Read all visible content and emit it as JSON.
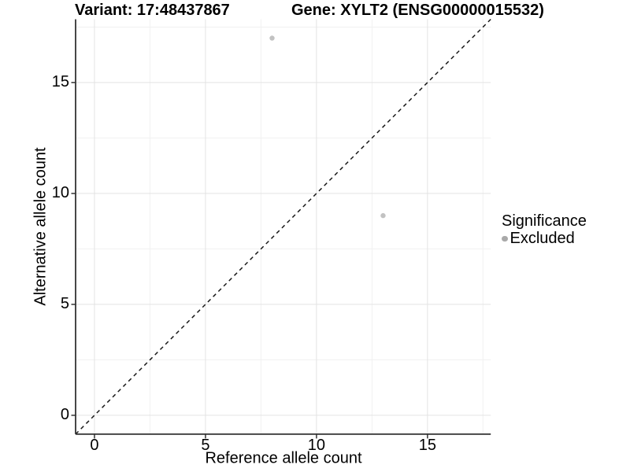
{
  "figure": {
    "titles": {
      "variant": "Variant: 17:48437867",
      "gene": "Gene: XYLT2 (ENSG00000015532)"
    }
  },
  "legend": {
    "title": "Significance",
    "items": [
      {
        "label": "Excluded",
        "color": "#a9a9a9"
      }
    ]
  },
  "chart_data": {
    "type": "scatter",
    "title": "Variant: 17:48437867 | Gene: XYLT2 (ENSG00000015532)",
    "xlabel": "Reference allele count",
    "ylabel": "Alternative allele count",
    "xlim": [
      -0.85,
      17.85
    ],
    "ylim": [
      -0.85,
      17.85
    ],
    "x_ticks": [
      0,
      5,
      10,
      15
    ],
    "y_ticks": [
      0,
      5,
      10,
      15
    ],
    "x_minor_ticks": [
      2.5,
      7.5,
      12.5,
      17.5
    ],
    "y_minor_ticks": [
      2.5,
      7.5,
      12.5,
      17.5
    ],
    "grid": "major+minor",
    "legend_position": "right",
    "series": [
      {
        "name": "Excluded",
        "color": "#c2c2c2",
        "points": [
          {
            "x": 8,
            "y": 17
          },
          {
            "x": 13,
            "y": 9
          }
        ]
      }
    ],
    "reference_line": {
      "type": "identity y=x",
      "style": "dashed",
      "color": "#1a1a1a"
    }
  },
  "colors": {
    "background": "#ffffff",
    "grid_major": "#e3e3e3",
    "grid_minor": "#f1f1f1",
    "axis_line": "#333333",
    "tick_mark": "#333333",
    "text": "#000000"
  }
}
